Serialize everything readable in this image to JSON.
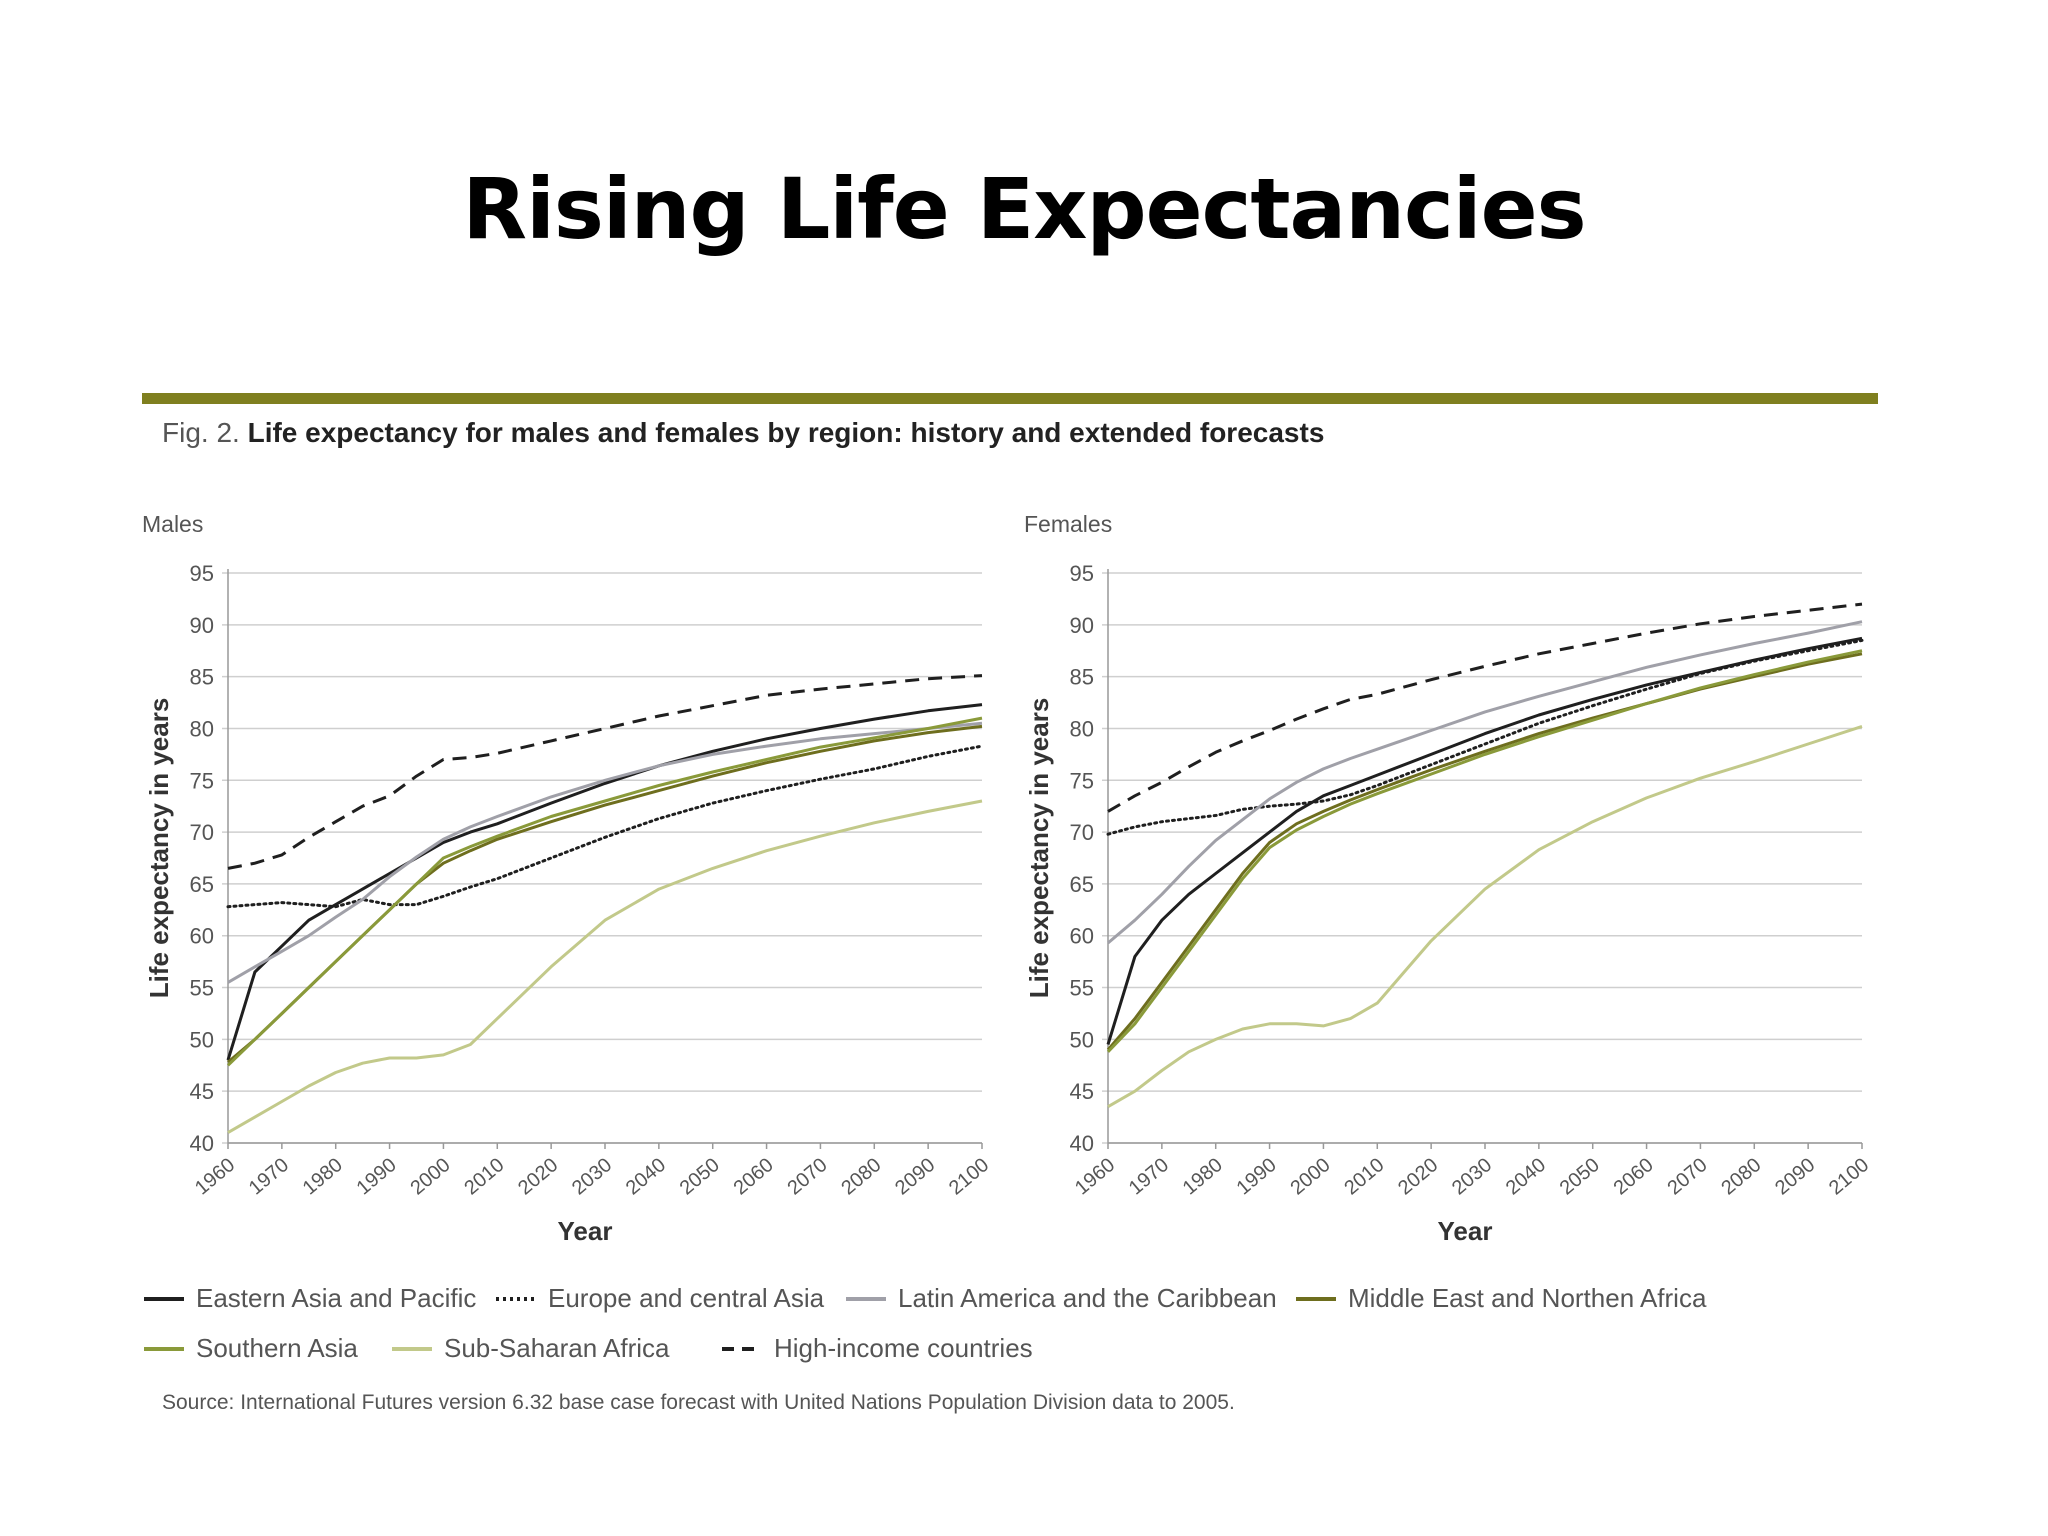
{
  "slide_title": "Rising Life Expectancies",
  "figure": {
    "caption_prefix": "Fig. 2.",
    "caption_bold": "Life expectancy for males and females by region: history and extended forecasts",
    "source": "Source: International Futures version 6.32 base case forecast with United Nations Population Division data to 2005."
  },
  "series_styles": [
    {
      "name": "Eastern Asia and Pacific",
      "color": "#1f1f1f",
      "dash": "solid",
      "width": 3
    },
    {
      "name": "Europe and central Asia",
      "color": "#1f1f1f",
      "dash": "dotted",
      "width": 3
    },
    {
      "name": "Latin America and the Caribbean",
      "color": "#a0a0a8",
      "dash": "solid",
      "width": 3
    },
    {
      "name": "Middle East and Northen Africa",
      "color": "#6e6e1e",
      "dash": "solid",
      "width": 3
    },
    {
      "name": "Southern Asia",
      "color": "#8a9a3a",
      "dash": "solid",
      "width": 3
    },
    {
      "name": "Sub-Saharan Africa",
      "color": "#c2c98a",
      "dash": "solid",
      "width": 3
    },
    {
      "name": "High-income countries",
      "color": "#1f1f1f",
      "dash": "dashed",
      "width": 3
    }
  ],
  "chart_data": [
    {
      "type": "line",
      "title": "Males",
      "xlabel": "Year",
      "ylabel": "Life expectancy in years",
      "xlim": [
        1960,
        2100
      ],
      "ylim": [
        40,
        95
      ],
      "x_ticks": [
        1960,
        1970,
        1980,
        1990,
        2000,
        2010,
        2020,
        2030,
        2040,
        2050,
        2060,
        2070,
        2080,
        2090,
        2100
      ],
      "y_ticks": [
        40,
        45,
        50,
        55,
        60,
        65,
        70,
        75,
        80,
        85,
        90,
        95
      ],
      "grid": true,
      "x": [
        1960,
        1965,
        1970,
        1975,
        1980,
        1985,
        1990,
        1995,
        2000,
        2005,
        2010,
        2020,
        2030,
        2040,
        2050,
        2060,
        2070,
        2080,
        2090,
        2100
      ],
      "series": [
        {
          "name": "Eastern Asia and Pacific",
          "values": [
            48,
            56.5,
            59,
            61.5,
            63,
            64.5,
            66,
            67.5,
            69,
            70,
            70.8,
            72.8,
            74.7,
            76.4,
            77.8,
            79,
            80,
            80.9,
            81.7,
            82.3
          ]
        },
        {
          "name": "Europe and central Asia",
          "values": [
            62.8,
            63,
            63.2,
            63,
            62.8,
            63.5,
            63,
            63,
            63.8,
            64.7,
            65.5,
            67.5,
            69.5,
            71.3,
            72.8,
            74,
            75.1,
            76.1,
            77.3,
            78.3
          ]
        },
        {
          "name": "Latin America and the Caribbean",
          "values": [
            55.5,
            57,
            58.5,
            60,
            61.8,
            63.5,
            65.7,
            67.6,
            69.3,
            70.5,
            71.5,
            73.4,
            75,
            76.4,
            77.5,
            78.3,
            79,
            79.5,
            80,
            80.5
          ]
        },
        {
          "name": "Middle East and Northen Africa",
          "values": [
            47.8,
            50,
            52.5,
            55,
            57.5,
            60,
            62.5,
            65,
            67,
            68.2,
            69.3,
            71,
            72.6,
            74,
            75.4,
            76.7,
            77.8,
            78.8,
            79.6,
            80.2
          ]
        },
        {
          "name": "Southern Asia",
          "values": [
            47.5,
            50,
            52.5,
            55,
            57.5,
            60,
            62.5,
            65,
            67.5,
            68.6,
            69.6,
            71.5,
            73,
            74.5,
            75.8,
            77,
            78.2,
            79.1,
            80,
            81
          ]
        },
        {
          "name": "Sub-Saharan Africa",
          "values": [
            41,
            42.5,
            44,
            45.5,
            46.8,
            47.7,
            48.2,
            48.2,
            48.5,
            49.5,
            52,
            57,
            61.5,
            64.5,
            66.5,
            68.2,
            69.6,
            70.9,
            72,
            73
          ]
        },
        {
          "name": "High-income countries",
          "values": [
            66.5,
            67,
            67.8,
            69.5,
            71,
            72.5,
            73.5,
            75.4,
            77,
            77.2,
            77.6,
            78.8,
            80,
            81.2,
            82.2,
            83.2,
            83.8,
            84.3,
            84.8,
            85.1
          ]
        }
      ]
    },
    {
      "type": "line",
      "title": "Females",
      "xlabel": "Year",
      "ylabel": "Life expectancy in years",
      "xlim": [
        1960,
        2100
      ],
      "ylim": [
        40,
        95
      ],
      "x_ticks": [
        1960,
        1970,
        1980,
        1990,
        2000,
        2010,
        2020,
        2030,
        2040,
        2050,
        2060,
        2070,
        2080,
        2090,
        2100
      ],
      "y_ticks": [
        40,
        45,
        50,
        55,
        60,
        65,
        70,
        75,
        80,
        85,
        90,
        95
      ],
      "grid": true,
      "x": [
        1960,
        1965,
        1970,
        1975,
        1980,
        1985,
        1990,
        1995,
        2000,
        2005,
        2010,
        2020,
        2030,
        2040,
        2050,
        2060,
        2070,
        2080,
        2090,
        2100
      ],
      "series": [
        {
          "name": "Eastern Asia and Pacific",
          "values": [
            49.5,
            58,
            61.5,
            64,
            66,
            68,
            70,
            72,
            73.5,
            74.5,
            75.5,
            77.5,
            79.5,
            81.3,
            82.8,
            84.2,
            85.4,
            86.6,
            87.7,
            88.7
          ]
        },
        {
          "name": "Europe and central Asia",
          "values": [
            69.8,
            70.5,
            71,
            71.3,
            71.6,
            72.2,
            72.5,
            72.7,
            73,
            73.6,
            74.5,
            76.5,
            78.5,
            80.5,
            82.2,
            83.8,
            85.3,
            86.5,
            87.5,
            88.5
          ]
        },
        {
          "name": "Latin America and the Caribbean",
          "values": [
            59.3,
            61.5,
            64,
            66.7,
            69.2,
            71.2,
            73.2,
            74.8,
            76.1,
            77.1,
            78,
            79.8,
            81.6,
            83.1,
            84.5,
            85.9,
            87.1,
            88.2,
            89.2,
            90.3
          ]
        },
        {
          "name": "Middle East and Northen Africa",
          "values": [
            49,
            52,
            55.5,
            59,
            62.5,
            66,
            69,
            70.8,
            72,
            73.1,
            74.1,
            76,
            77.8,
            79.5,
            81,
            82.4,
            83.8,
            85,
            86.2,
            87.2
          ]
        },
        {
          "name": "Southern Asia",
          "values": [
            48.8,
            51.5,
            55,
            58.5,
            62,
            65.5,
            68.5,
            70.2,
            71.5,
            72.7,
            73.7,
            75.6,
            77.5,
            79.2,
            80.8,
            82.4,
            83.9,
            85.2,
            86.4,
            87.5
          ]
        },
        {
          "name": "Sub-Saharan Africa",
          "values": [
            43.5,
            45,
            47,
            48.8,
            50,
            51,
            51.5,
            51.5,
            51.3,
            52,
            53.5,
            59.5,
            64.5,
            68.3,
            71,
            73.3,
            75.2,
            76.8,
            78.5,
            80.2
          ]
        },
        {
          "name": "High-income countries",
          "values": [
            72,
            73.5,
            74.8,
            76.3,
            77.7,
            78.8,
            79.8,
            80.9,
            81.9,
            82.8,
            83.3,
            84.7,
            86,
            87.2,
            88.2,
            89.2,
            90.1,
            90.8,
            91.4,
            92
          ]
        }
      ]
    }
  ]
}
